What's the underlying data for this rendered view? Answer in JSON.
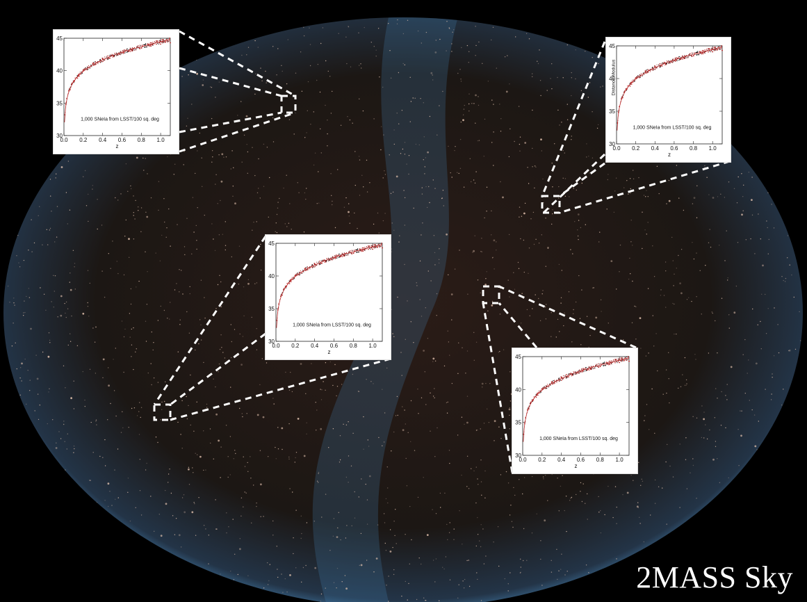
{
  "title": "2MASS Sky",
  "colors": {
    "background": "#000000",
    "sky_edge": "#4a8fc4",
    "galaxy_dots": "#e8c7b2",
    "data_points": "#b21e1e",
    "callout": "#ffffff"
  },
  "chart_data": [
    {
      "type": "scatter",
      "annotation": "1,000 SNeIa from LSST/100 sq. deg",
      "xlabel": "z",
      "ylabel": "",
      "xlim": [
        0.0,
        1.1
      ],
      "ylim": [
        30,
        45
      ],
      "xticks": [
        "0.0",
        "0.2",
        "0.4",
        "0.6",
        "0.8",
        "1.0"
      ],
      "yticks": [
        "30",
        "35",
        "40",
        "45"
      ],
      "n_points": 1000,
      "x": [
        0.01,
        0.02,
        0.03,
        0.05,
        0.08,
        0.1,
        0.15,
        0.2,
        0.3,
        0.4,
        0.5,
        0.6,
        0.7,
        0.8,
        0.9,
        1.0,
        1.1
      ],
      "y": [
        33.2,
        34.8,
        35.7,
        36.9,
        37.9,
        38.4,
        39.4,
        40.1,
        41.1,
        41.8,
        42.4,
        42.8,
        43.2,
        43.5,
        43.8,
        44.1,
        44.3
      ]
    },
    {
      "type": "scatter",
      "annotation": "1,000 SNeIa from LSST/100 sq. deg",
      "xlabel": "z",
      "ylabel": "Distance Modulus",
      "xlim": [
        0.0,
        1.1
      ],
      "ylim": [
        30,
        45
      ],
      "xticks": [
        "0.0",
        "0.2",
        "0.4",
        "0.6",
        "0.8",
        "1.0"
      ],
      "yticks": [
        "30",
        "35",
        "40",
        "45"
      ],
      "n_points": 1000,
      "x": [
        0.01,
        0.02,
        0.03,
        0.05,
        0.08,
        0.1,
        0.15,
        0.2,
        0.3,
        0.4,
        0.5,
        0.6,
        0.7,
        0.8,
        0.9,
        1.0,
        1.1
      ],
      "y": [
        33.2,
        34.8,
        35.7,
        36.9,
        37.9,
        38.4,
        39.4,
        40.1,
        41.1,
        41.8,
        42.4,
        42.8,
        43.2,
        43.5,
        43.8,
        44.1,
        44.3
      ]
    },
    {
      "type": "scatter",
      "annotation": "1,000 SNeIa from LSST/100 sq. deg",
      "xlabel": "z",
      "ylabel": "",
      "xlim": [
        0.0,
        1.1
      ],
      "ylim": [
        30,
        45
      ],
      "xticks": [
        "0.0",
        "0.2",
        "0.4",
        "0.6",
        "0.8",
        "1.0"
      ],
      "yticks": [
        "30",
        "35",
        "40",
        "45"
      ],
      "n_points": 1000,
      "x": [
        0.01,
        0.02,
        0.03,
        0.05,
        0.08,
        0.1,
        0.15,
        0.2,
        0.3,
        0.4,
        0.5,
        0.6,
        0.7,
        0.8,
        0.9,
        1.0,
        1.1
      ],
      "y": [
        33.2,
        34.8,
        35.7,
        36.9,
        37.9,
        38.4,
        39.4,
        40.1,
        41.1,
        41.8,
        42.4,
        42.8,
        43.2,
        43.5,
        43.8,
        44.1,
        44.3
      ]
    },
    {
      "type": "scatter",
      "annotation": "1,000 SNeIa from LSST/100 sq. deg",
      "xlabel": "z",
      "ylabel": "",
      "xlim": [
        0.0,
        1.1
      ],
      "ylim": [
        30,
        45
      ],
      "xticks": [
        "0.0",
        "0.2",
        "0.4",
        "0.6",
        "0.8",
        "1.0"
      ],
      "yticks": [
        "30",
        "35",
        "40",
        "45"
      ],
      "n_points": 1000,
      "x": [
        0.01,
        0.02,
        0.03,
        0.05,
        0.08,
        0.1,
        0.15,
        0.2,
        0.3,
        0.4,
        0.5,
        0.6,
        0.7,
        0.8,
        0.9,
        1.0,
        1.1
      ],
      "y": [
        33.2,
        34.8,
        35.7,
        36.9,
        37.9,
        38.4,
        39.4,
        40.1,
        41.1,
        41.8,
        42.4,
        42.8,
        43.2,
        43.5,
        43.8,
        44.1,
        44.3
      ]
    }
  ]
}
